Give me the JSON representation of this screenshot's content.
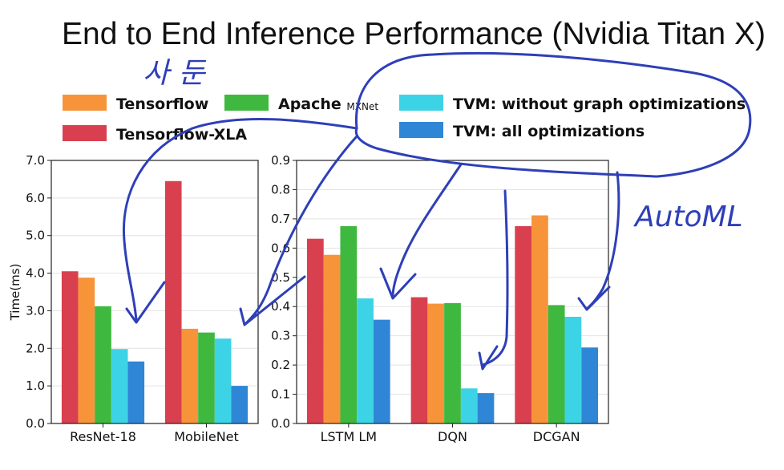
{
  "title": "End to End Inference Performance (Nvidia Titan X)",
  "legend": [
    {
      "label": "Tensorflow",
      "sub": "",
      "color": "#f7943a"
    },
    {
      "label": "Apache ",
      "sub": "MXNet",
      "color": "#3fb83f"
    },
    {
      "label": "TVM: without graph optimizations",
      "sub": "",
      "color": "#3dd3e6"
    },
    {
      "label": "Tensorflow-XLA",
      "sub": "",
      "color": "#d9404f"
    },
    {
      "label": "TVM: all optimizations",
      "sub": "",
      "color": "#2f86d6"
    }
  ],
  "annotations": {
    "handwriting_top": "사 둔",
    "handwriting_right": "AutoML"
  },
  "chart_data": [
    {
      "type": "bar",
      "categories": [
        "ResNet-18",
        "MobileNet"
      ],
      "ylabel": "Time(ms)",
      "ylim": [
        0,
        7
      ],
      "yticks": [
        "0.0",
        "1.0",
        "2.0",
        "3.0",
        "4.0",
        "5.0",
        "6.0",
        "7.0"
      ],
      "grid": true,
      "series": [
        {
          "name": "Tensorflow-XLA",
          "color": "#d9404f",
          "values": [
            4.05,
            6.45
          ]
        },
        {
          "name": "Tensorflow",
          "color": "#f7943a",
          "values": [
            3.88,
            2.52
          ]
        },
        {
          "name": "Apache MXNet",
          "color": "#3fb83f",
          "values": [
            3.12,
            2.42
          ]
        },
        {
          "name": "TVM: without graph optimizations",
          "color": "#3dd3e6",
          "values": [
            1.98,
            2.26
          ]
        },
        {
          "name": "TVM: all optimizations",
          "color": "#2f86d6",
          "values": [
            1.65,
            1.0
          ]
        }
      ]
    },
    {
      "type": "bar",
      "categories": [
        "LSTM LM",
        "DQN",
        "DCGAN"
      ],
      "ylabel": "",
      "ylim": [
        0,
        0.9
      ],
      "yticks": [
        "0.0",
        "0.1",
        "0.2",
        "0.3",
        "0.4",
        "0.5",
        "0.6",
        "0.7",
        "0.8",
        "0.9"
      ],
      "grid": true,
      "series": [
        {
          "name": "Tensorflow-XLA",
          "color": "#d9404f",
          "values": [
            0.632,
            0.432,
            0.675
          ]
        },
        {
          "name": "Tensorflow",
          "color": "#f7943a",
          "values": [
            0.577,
            0.41,
            0.712
          ]
        },
        {
          "name": "Apache MXNet",
          "color": "#3fb83f",
          "values": [
            0.675,
            0.412,
            0.405
          ]
        },
        {
          "name": "TVM: without graph optimizations",
          "color": "#3dd3e6",
          "values": [
            0.428,
            0.12,
            0.365
          ]
        },
        {
          "name": "TVM: all optimizations",
          "color": "#2f86d6",
          "values": [
            0.355,
            0.104,
            0.26
          ]
        }
      ]
    }
  ]
}
